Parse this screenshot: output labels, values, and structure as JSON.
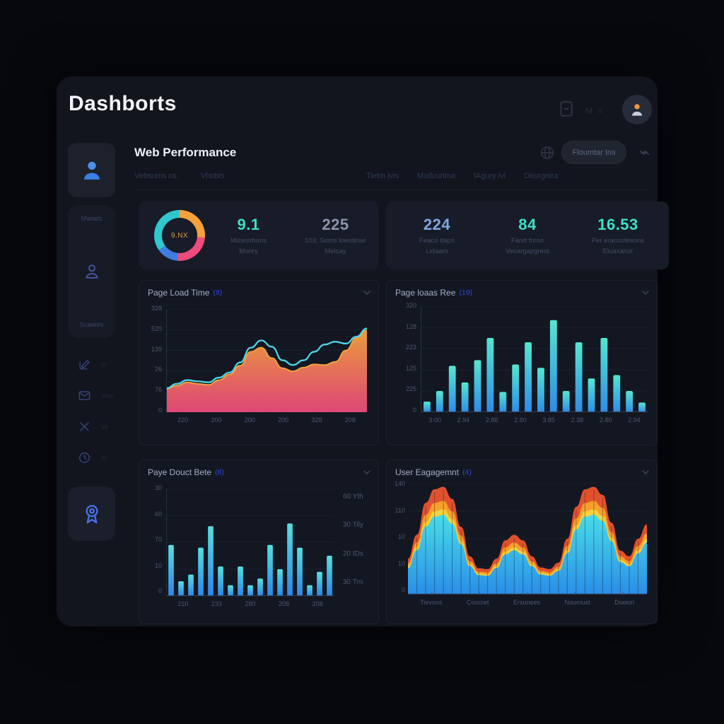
{
  "app": {
    "title": "Dashborts"
  },
  "topbar": {
    "faint_text": "M ="
  },
  "workspace": {
    "title": "Web Performance",
    "tabs_left": [
      "Vebsums ns",
      "Vhobis"
    ],
    "tabs_right": [
      "Tietm ivis",
      "Moifcurtme",
      "lAgury ivl",
      "Deurgnira"
    ],
    "action_button": "Floumtar Ins"
  },
  "sidebar": {
    "card_top_label": "Mariats",
    "card_bottom_label": "Scawies",
    "items": [
      {
        "icon": "edit-icon",
        "label": "tir"
      },
      {
        "icon": "mail-icon",
        "label": "Mas"
      },
      {
        "icon": "close-x-icon",
        "label": "Ini"
      },
      {
        "icon": "clock-icon",
        "label": "Itr"
      }
    ]
  },
  "kpi_card_1": {
    "donut_center": "9.NX",
    "donut_colors": [
      "#f6a13c",
      "#ef4b7c",
      "#3f7de0",
      "#2fc8cf"
    ],
    "stats": [
      {
        "value": "9.1",
        "line1": "Mizeoirbuns",
        "line2": "Monry",
        "color": "#3fe0c5"
      },
      {
        "value": "225",
        "line1": "103; Soms loerdinse",
        "line2": "Meicay",
        "color": "#8b93ad"
      }
    ]
  },
  "kpi_card_2": {
    "stats": [
      {
        "value": "224",
        "line1": "Feaco Itaps",
        "line2": "Lidaam",
        "color": "#7fa7e2"
      },
      {
        "value": "84",
        "line1": "Faret foros",
        "line2": "Vecargapgrem",
        "color": "#3fe0c5"
      },
      {
        "value": "16.53",
        "line1": "Per eransotesons",
        "line2": "Eluaxanor",
        "color": "#3fe0c5"
      }
    ]
  },
  "chart_data": [
    {
      "id": "page-load-time",
      "type": "area",
      "title": "Page Load Time",
      "badge": "(8)",
      "ylim": [
        0,
        328
      ],
      "yticks": [
        "328",
        "520",
        "139",
        "26",
        "76",
        "0"
      ],
      "xticks": [
        "220",
        "200",
        "200",
        "200",
        "328",
        "208"
      ],
      "line": {
        "name": "response-line",
        "color": "#4fd4e4",
        "values": [
          76,
          90,
          102,
          98,
          95,
          110,
          126,
          158,
          205,
          228,
          208,
          165,
          150,
          165,
          192,
          215,
          224,
          218,
          240,
          266
        ]
      },
      "area": {
        "name": "load-area",
        "stroke": "#f7a23c",
        "gradient": [
          "#f7a23c",
          "#ef4b7e"
        ],
        "values": [
          74,
          84,
          95,
          90,
          87,
          102,
          120,
          148,
          192,
          205,
          172,
          140,
          130,
          142,
          152,
          150,
          160,
          196,
          235,
          260
        ]
      }
    },
    {
      "id": "page-loaas-ree",
      "type": "bar",
      "title": "Page loaas Ree",
      "badge": "(19)",
      "ylim": [
        0,
        320
      ],
      "yticks": [
        "320",
        "128",
        "223",
        "125",
        "225",
        "0"
      ],
      "xticks": [
        "3:00",
        "2.94",
        "2.88",
        "2.80",
        "3.85",
        "2.38",
        "2.80",
        "2.94"
      ],
      "bar_gradient": [
        "#55e6d0",
        "#2d8ce8"
      ],
      "values": [
        32,
        64,
        140,
        90,
        157,
        224,
        61,
        144,
        211,
        134,
        278,
        64,
        211,
        102,
        224,
        112,
        64,
        29
      ]
    },
    {
      "id": "paye-douct-bete",
      "type": "bar",
      "title": "Paye Douct Bete",
      "badge": "(8)",
      "ylim": [
        0,
        80
      ],
      "yticks": [
        "30",
        "60",
        "70",
        "10",
        "0"
      ],
      "xticks": [
        "210",
        "233",
        "280",
        "208",
        "208"
      ],
      "right_labels": [
        "60 Yth",
        "30 Tily",
        "20 IDs",
        "30 Trn"
      ],
      "bar_gradient": [
        "#55e0e0",
        "#2d86e8"
      ],
      "values": [
        38,
        11,
        16,
        36,
        52,
        22,
        8,
        22,
        8,
        13,
        38,
        20,
        54,
        36,
        8,
        18,
        30
      ]
    },
    {
      "id": "user-eagagemnt",
      "type": "stacked",
      "title": "User Eagagemnt",
      "badge": "(4)",
      "ylim": [
        0,
        140
      ],
      "yticks": [
        "140",
        "110",
        "10",
        "10",
        "0"
      ],
      "xticks": [
        "Tievons",
        "Coocret",
        "Ersunees",
        "Noumust",
        "Doeion"
      ],
      "envelope": [
        45,
        75,
        115,
        132,
        135,
        120,
        85,
        48,
        33,
        32,
        45,
        68,
        75,
        68,
        48,
        34,
        32,
        40,
        70,
        110,
        132,
        135,
        125,
        90,
        55,
        48,
        70,
        88
      ],
      "layers": [
        {
          "name": "layer-red",
          "color": "#e2512e",
          "scale": 1
        },
        {
          "name": "layer-orange",
          "color": "#f7a02c",
          "scale": 0.87
        },
        {
          "name": "layer-yellow",
          "color": "#f6d23e",
          "scale": 0.79
        },
        {
          "name": "layer-body",
          "gradient": [
            "#48dce8",
            "#2a8ee8"
          ],
          "scale": 0.74
        }
      ]
    }
  ]
}
